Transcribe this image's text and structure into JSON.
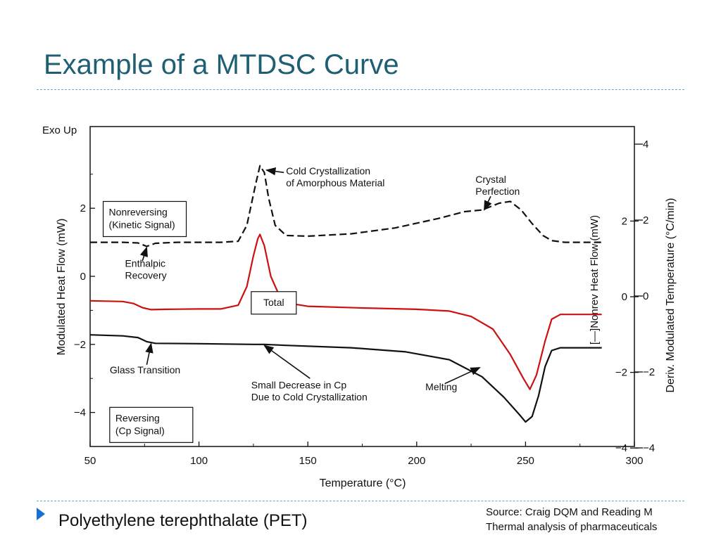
{
  "slide": {
    "title": "Example of a MTDSC Curve",
    "bullet": "Polyethylene terephthalate (PET)",
    "source_line1": "Source: Craig DQM and Reading M",
    "source_line2": "Thermal analysis of pharmaceuticals",
    "accent_color": "#1f5f73",
    "divider_color": "#6aa7bf",
    "bullet_icon": "triangle-right-icon"
  },
  "chart_data": {
    "type": "line",
    "xlabel": "Temperature (°C)",
    "ylabel_left": "Modulated Heat Flow (mW)",
    "ylabel_right_inner": "[—]Nonrev Heat Flow (mW)",
    "ylabel_right_outer": "Deriv. Modulated Temperature (°C/min)",
    "exo_label": "Exo Up",
    "xlim": [
      50,
      300
    ],
    "ylim_left": [
      -5,
      4.4
    ],
    "x_ticks": [
      50,
      100,
      150,
      200,
      250,
      300
    ],
    "y_ticks_left": [
      -4,
      -2,
      0,
      2
    ],
    "y_ticks_right_inner": [
      {
        "value": 2,
        "label": "2"
      },
      {
        "value": 0,
        "label": "0"
      },
      {
        "value": -2,
        "label": "−2"
      },
      {
        "value": -4,
        "label": "−4"
      }
    ],
    "y_ticks_right_outer": [
      {
        "value": 4,
        "label": "4"
      },
      {
        "value": 2,
        "label": "2"
      },
      {
        "value": 0,
        "label": "0"
      },
      {
        "value": -2,
        "label": "−2"
      },
      {
        "value": -4,
        "label": "−4"
      }
    ],
    "series": [
      {
        "label": "Nonreversing (Kinetic Signal)",
        "color": "#111111",
        "style": "dashed",
        "points": [
          [
            50,
            1.0
          ],
          [
            65,
            1.0
          ],
          [
            72,
            0.98
          ],
          [
            76,
            0.88
          ],
          [
            80,
            0.97
          ],
          [
            90,
            1.0
          ],
          [
            110,
            1.0
          ],
          [
            118,
            1.03
          ],
          [
            122,
            1.5
          ],
          [
            126,
            2.7
          ],
          [
            128,
            3.25
          ],
          [
            130,
            3.05
          ],
          [
            132,
            2.3
          ],
          [
            135,
            1.5
          ],
          [
            140,
            1.2
          ],
          [
            150,
            1.18
          ],
          [
            170,
            1.25
          ],
          [
            190,
            1.42
          ],
          [
            210,
            1.7
          ],
          [
            222,
            1.9
          ],
          [
            230,
            1.95
          ],
          [
            238,
            2.15
          ],
          [
            243,
            2.2
          ],
          [
            248,
            1.95
          ],
          [
            253,
            1.55
          ],
          [
            258,
            1.2
          ],
          [
            262,
            1.05
          ],
          [
            268,
            1.0
          ],
          [
            285,
            1.0
          ]
        ]
      },
      {
        "label": "Total",
        "color": "#cc1111",
        "style": "solid",
        "points": [
          [
            50,
            -0.72
          ],
          [
            65,
            -0.74
          ],
          [
            70,
            -0.8
          ],
          [
            74,
            -0.92
          ],
          [
            78,
            -0.98
          ],
          [
            85,
            -0.97
          ],
          [
            100,
            -0.96
          ],
          [
            110,
            -0.96
          ],
          [
            118,
            -0.85
          ],
          [
            122,
            -0.3
          ],
          [
            125,
            0.6
          ],
          [
            127,
            1.1
          ],
          [
            128,
            1.23
          ],
          [
            130,
            0.9
          ],
          [
            133,
            0.0
          ],
          [
            137,
            -0.58
          ],
          [
            142,
            -0.8
          ],
          [
            150,
            -0.88
          ],
          [
            175,
            -0.93
          ],
          [
            200,
            -0.97
          ],
          [
            215,
            -1.02
          ],
          [
            225,
            -1.18
          ],
          [
            235,
            -1.55
          ],
          [
            243,
            -2.3
          ],
          [
            249,
            -3.0
          ],
          [
            252,
            -3.32
          ],
          [
            255,
            -2.9
          ],
          [
            259,
            -1.9
          ],
          [
            262,
            -1.26
          ],
          [
            266,
            -1.12
          ],
          [
            285,
            -1.12
          ]
        ]
      },
      {
        "label": "Reversing (Cp Signal)",
        "color": "#111111",
        "style": "solid",
        "points": [
          [
            50,
            -1.72
          ],
          [
            65,
            -1.75
          ],
          [
            72,
            -1.8
          ],
          [
            76,
            -1.92
          ],
          [
            80,
            -1.97
          ],
          [
            100,
            -1.98
          ],
          [
            125,
            -2.0
          ],
          [
            130,
            -2.0
          ],
          [
            140,
            -2.03
          ],
          [
            170,
            -2.1
          ],
          [
            195,
            -2.22
          ],
          [
            215,
            -2.45
          ],
          [
            230,
            -2.95
          ],
          [
            240,
            -3.55
          ],
          [
            247,
            -4.05
          ],
          [
            250,
            -4.28
          ],
          [
            253,
            -4.12
          ],
          [
            256,
            -3.5
          ],
          [
            259,
            -2.65
          ],
          [
            262,
            -2.18
          ],
          [
            266,
            -2.1
          ],
          [
            285,
            -2.1
          ]
        ]
      }
    ],
    "boxed_labels": [
      {
        "lines": [
          "Nonreversing",
          "(Kinetic Signal)"
        ],
        "x": 56,
        "y": 2.2
      },
      {
        "lines": [
          "Total"
        ],
        "x": 124,
        "y": -0.45
      },
      {
        "lines": [
          "Reversing",
          "(Cp Signal)"
        ],
        "x": 59,
        "y": -3.85
      }
    ],
    "annotations": [
      {
        "lines": [
          "Cold Crystallization",
          "of Amorphous Material"
        ],
        "text_x": 140,
        "text_y": 3.0,
        "arrow_from": [
          139,
          3.05
        ],
        "arrow_to": [
          131,
          3.12
        ]
      },
      {
        "lines": [
          "Crystal",
          "Perfection"
        ],
        "text_x": 227,
        "text_y": 2.75,
        "arrow_from": [
          234,
          2.35
        ],
        "arrow_to": [
          231,
          1.95
        ]
      },
      {
        "lines": [
          "Enthalpic",
          "Recovery"
        ],
        "text_x": 66,
        "text_y": 0.28,
        "arrow_from": [
          74,
          0.45
        ],
        "arrow_to": [
          76,
          0.85
        ]
      },
      {
        "lines": [
          "Glass Transition"
        ],
        "text_x": 59,
        "text_y": -2.85,
        "arrow_from": [
          76,
          -2.6
        ],
        "arrow_to": [
          78,
          -1.98
        ]
      },
      {
        "lines": [
          "Small Decrease in Cp",
          "Due to Cold Crystallization"
        ],
        "text_x": 124,
        "text_y": -3.3,
        "arrow_from": [
          151,
          -3.0
        ],
        "arrow_to": [
          130,
          -2.03
        ]
      },
      {
        "lines": [
          "Melting"
        ],
        "text_x": 204,
        "text_y": -3.35,
        "arrow_from": [
          213,
          -3.15
        ],
        "arrow_to": [
          229,
          -2.68
        ]
      }
    ]
  }
}
